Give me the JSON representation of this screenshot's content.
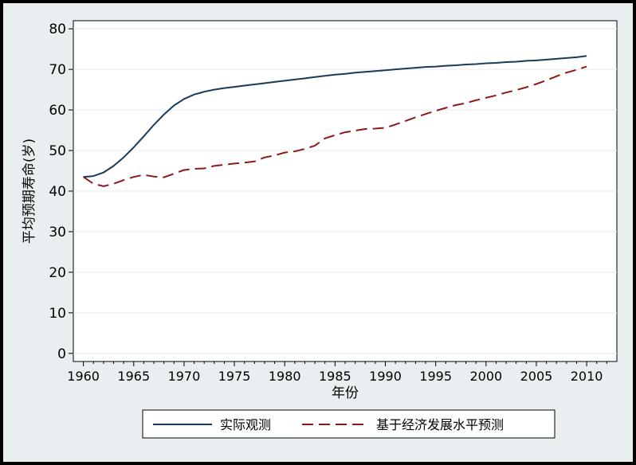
{
  "chart_data": {
    "type": "line",
    "title": "",
    "xlabel": "年份",
    "ylabel": "平均预期寿命(岁)",
    "xlim": [
      1959,
      2013
    ],
    "ylim": [
      -2,
      82
    ],
    "x_ticks": [
      1960,
      1965,
      1970,
      1975,
      1980,
      1985,
      1990,
      1995,
      2000,
      2005,
      2010
    ],
    "y_ticks": [
      0,
      10,
      20,
      30,
      40,
      50,
      60,
      70,
      80
    ],
    "grid": true,
    "legend_position": "bottom",
    "colors": {
      "actual": "#1a3a5c",
      "predicted": "#8b1a1a"
    },
    "series": [
      {
        "name": "实际观测",
        "style": "solid",
        "x": [
          1960,
          1961,
          1962,
          1963,
          1964,
          1965,
          1966,
          1967,
          1968,
          1969,
          1970,
          1971,
          1972,
          1973,
          1974,
          1975,
          1976,
          1977,
          1978,
          1979,
          1980,
          1981,
          1982,
          1983,
          1984,
          1985,
          1986,
          1987,
          1988,
          1989,
          1990,
          1991,
          1992,
          1993,
          1994,
          1995,
          1996,
          1997,
          1998,
          1999,
          2000,
          2001,
          2002,
          2003,
          2004,
          2005,
          2006,
          2007,
          2008,
          2009,
          2010
        ],
        "values": [
          43.5,
          43.7,
          44.6,
          46.2,
          48.3,
          50.8,
          53.5,
          56.3,
          58.9,
          61.1,
          62.7,
          63.8,
          64.5,
          65.0,
          65.4,
          65.7,
          66.0,
          66.3,
          66.6,
          66.9,
          67.2,
          67.5,
          67.8,
          68.1,
          68.4,
          68.7,
          68.9,
          69.2,
          69.4,
          69.6,
          69.8,
          70.0,
          70.2,
          70.4,
          70.6,
          70.7,
          70.9,
          71.0,
          71.2,
          71.3,
          71.5,
          71.6,
          71.8,
          71.9,
          72.1,
          72.2,
          72.4,
          72.6,
          72.8,
          73.0,
          73.3
        ]
      },
      {
        "name": "基于经济发展水平预测",
        "style": "dashed",
        "x": [
          1960,
          1961,
          1962,
          1963,
          1964,
          1965,
          1966,
          1967,
          1968,
          1969,
          1970,
          1971,
          1972,
          1973,
          1974,
          1975,
          1976,
          1977,
          1978,
          1979,
          1980,
          1981,
          1982,
          1983,
          1984,
          1985,
          1986,
          1987,
          1988,
          1989,
          1990,
          1991,
          1992,
          1993,
          1994,
          1995,
          1996,
          1997,
          1998,
          1999,
          2000,
          2001,
          2002,
          2003,
          2004,
          2005,
          2006,
          2007,
          2008,
          2009,
          2010
        ],
        "values": [
          43.5,
          41.8,
          41.2,
          41.8,
          42.7,
          43.5,
          44.0,
          43.6,
          43.4,
          44.3,
          45.2,
          45.5,
          45.6,
          46.2,
          46.5,
          46.8,
          47.0,
          47.3,
          48.3,
          48.8,
          49.5,
          49.8,
          50.4,
          51.2,
          53.0,
          53.8,
          54.5,
          54.9,
          55.3,
          55.4,
          55.6,
          56.4,
          57.3,
          58.2,
          59.0,
          59.8,
          60.5,
          61.2,
          61.7,
          62.4,
          63.0,
          63.6,
          64.3,
          64.9,
          65.6,
          66.4,
          67.3,
          68.3,
          69.2,
          69.9,
          70.7
        ]
      }
    ]
  }
}
